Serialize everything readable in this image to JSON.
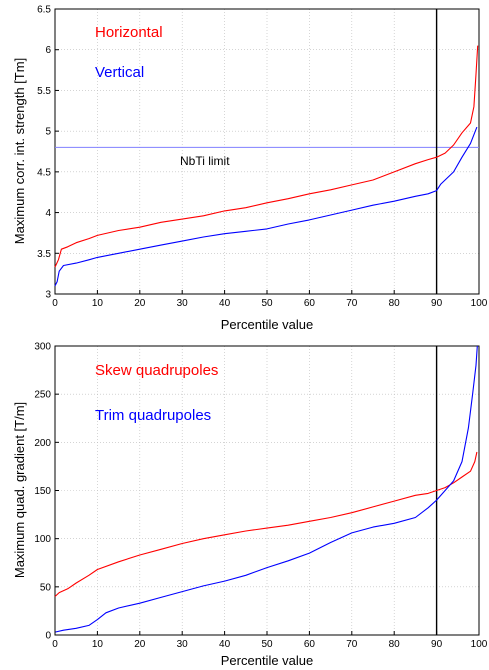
{
  "chart_data": [
    {
      "type": "line",
      "xlabel": "Percentile value",
      "ylabel": "Maximum corr. int. strength [Tm]",
      "xlim": [
        0,
        100
      ],
      "ylim": [
        3,
        6.5
      ],
      "xticks": [
        "0",
        "10",
        "20",
        "30",
        "40",
        "50",
        "60",
        "70",
        "80",
        "90",
        "100"
      ],
      "yticks": [
        "3",
        "3.5",
        "4",
        "4.5",
        "5",
        "5.5",
        "6",
        "6.5"
      ],
      "grid": true,
      "vline_x": 90,
      "hline": {
        "y": 4.8,
        "label": "NbTi limit",
        "color": "#8080ff"
      },
      "series": [
        {
          "name": "Horizontal",
          "color": "#ff0000",
          "points": [
            [
              0,
              3.33
            ],
            [
              0.8,
              3.42
            ],
            [
              1.5,
              3.55
            ],
            [
              3,
              3.58
            ],
            [
              5,
              3.63
            ],
            [
              8,
              3.68
            ],
            [
              10,
              3.72
            ],
            [
              15,
              3.78
            ],
            [
              20,
              3.82
            ],
            [
              25,
              3.88
            ],
            [
              30,
              3.92
            ],
            [
              35,
              3.96
            ],
            [
              40,
              4.02
            ],
            [
              45,
              4.06
            ],
            [
              50,
              4.12
            ],
            [
              55,
              4.17
            ],
            [
              60,
              4.23
            ],
            [
              65,
              4.28
            ],
            [
              70,
              4.34
            ],
            [
              75,
              4.4
            ],
            [
              80,
              4.5
            ],
            [
              85,
              4.6
            ],
            [
              88,
              4.65
            ],
            [
              90,
              4.68
            ],
            [
              92,
              4.73
            ],
            [
              94,
              4.83
            ],
            [
              96,
              4.98
            ],
            [
              98,
              5.1
            ],
            [
              98.8,
              5.3
            ],
            [
              99.3,
              5.7
            ],
            [
              99.7,
              6.05
            ]
          ]
        },
        {
          "name": "Vertical",
          "color": "#0000ff",
          "points": [
            [
              0,
              3.1
            ],
            [
              0.5,
              3.15
            ],
            [
              1,
              3.28
            ],
            [
              2,
              3.35
            ],
            [
              5,
              3.38
            ],
            [
              8,
              3.42
            ],
            [
              10,
              3.45
            ],
            [
              15,
              3.5
            ],
            [
              20,
              3.55
            ],
            [
              25,
              3.6
            ],
            [
              30,
              3.65
            ],
            [
              35,
              3.7
            ],
            [
              40,
              3.74
            ],
            [
              45,
              3.77
            ],
            [
              50,
              3.8
            ],
            [
              55,
              3.86
            ],
            [
              60,
              3.91
            ],
            [
              65,
              3.97
            ],
            [
              70,
              4.03
            ],
            [
              75,
              4.09
            ],
            [
              80,
              4.14
            ],
            [
              85,
              4.2
            ],
            [
              88,
              4.23
            ],
            [
              90,
              4.27
            ],
            [
              91,
              4.35
            ],
            [
              92,
              4.4
            ],
            [
              94,
              4.5
            ],
            [
              96,
              4.68
            ],
            [
              98,
              4.85
            ],
            [
              99.5,
              5.05
            ]
          ]
        }
      ]
    },
    {
      "type": "line",
      "xlabel": "Percentile value",
      "ylabel": "Maximum quad. gradient [T/m]",
      "xlim": [
        0,
        100
      ],
      "ylim": [
        0,
        300
      ],
      "xticks": [
        "0",
        "10",
        "20",
        "30",
        "40",
        "50",
        "60",
        "70",
        "80",
        "90",
        "100"
      ],
      "yticks": [
        "0",
        "50",
        "100",
        "150",
        "200",
        "250",
        "300"
      ],
      "grid": true,
      "vline_x": 90,
      "series": [
        {
          "name": "Skew quadrupoles",
          "color": "#ff0000",
          "points": [
            [
              0,
              40
            ],
            [
              1,
              44
            ],
            [
              3,
              48
            ],
            [
              5,
              54
            ],
            [
              8,
              62
            ],
            [
              10,
              68
            ],
            [
              15,
              76
            ],
            [
              20,
              83
            ],
            [
              25,
              89
            ],
            [
              30,
              95
            ],
            [
              35,
              100
            ],
            [
              40,
              104
            ],
            [
              45,
              108
            ],
            [
              50,
              111
            ],
            [
              55,
              114
            ],
            [
              60,
              118
            ],
            [
              65,
              122
            ],
            [
              70,
              127
            ],
            [
              75,
              133
            ],
            [
              80,
              139
            ],
            [
              85,
              145
            ],
            [
              88,
              147
            ],
            [
              90,
              150
            ],
            [
              92,
              153
            ],
            [
              94,
              158
            ],
            [
              96,
              164
            ],
            [
              98,
              170
            ],
            [
              99,
              180
            ],
            [
              99.5,
              190
            ]
          ]
        },
        {
          "name": "Trim quadrupoles",
          "color": "#0000ff",
          "points": [
            [
              0,
              3
            ],
            [
              2,
              5
            ],
            [
              5,
              7
            ],
            [
              8,
              10
            ],
            [
              10,
              16
            ],
            [
              12,
              23
            ],
            [
              15,
              28
            ],
            [
              20,
              33
            ],
            [
              25,
              39
            ],
            [
              30,
              45
            ],
            [
              35,
              51
            ],
            [
              40,
              56
            ],
            [
              45,
              62
            ],
            [
              50,
              70
            ],
            [
              55,
              77
            ],
            [
              60,
              85
            ],
            [
              65,
              96
            ],
            [
              70,
              106
            ],
            [
              75,
              112
            ],
            [
              80,
              116
            ],
            [
              85,
              122
            ],
            [
              88,
              132
            ],
            [
              90,
              140
            ],
            [
              92,
              150
            ],
            [
              94,
              160
            ],
            [
              96,
              180
            ],
            [
              97.5,
              215
            ],
            [
              98.5,
              250
            ],
            [
              99.3,
              280
            ],
            [
              99.6,
              300
            ]
          ]
        }
      ]
    }
  ]
}
